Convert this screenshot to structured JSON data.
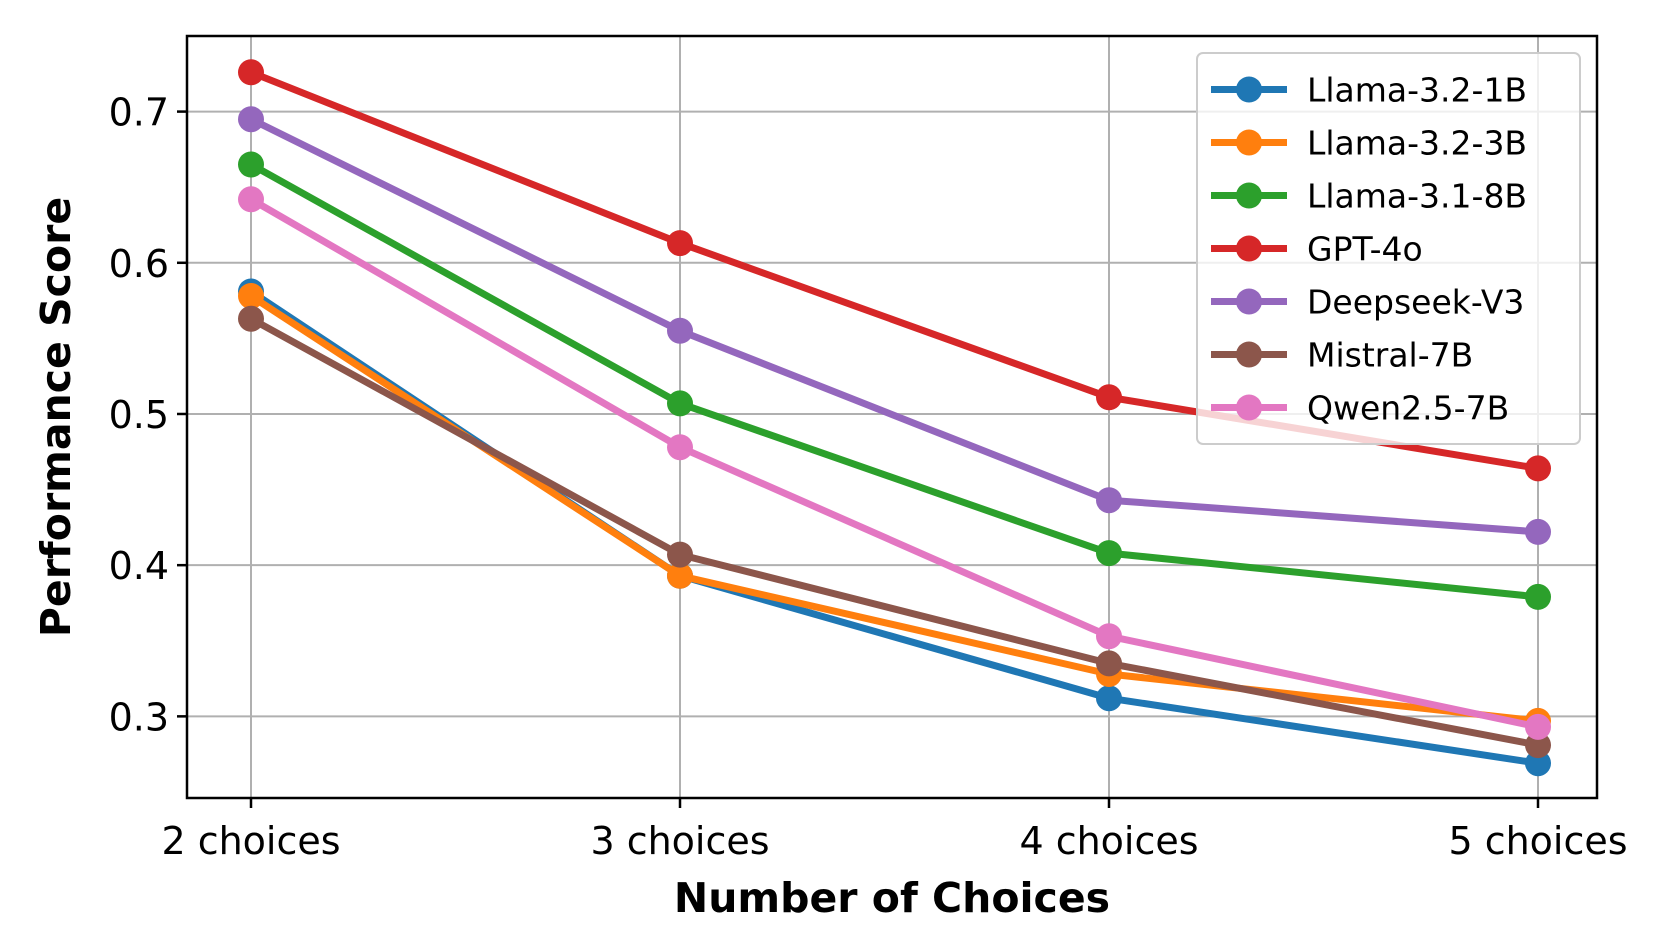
{
  "chart_data": {
    "type": "line",
    "title": "",
    "xlabel": "Number of Choices",
    "ylabel": "Performance Score",
    "categories": [
      "2 choices",
      "3 choices",
      "4 choices",
      "5 choices"
    ],
    "ylim": [
      0.246,
      0.75
    ],
    "yticks": [
      0.3,
      0.4,
      0.5,
      0.6,
      0.7
    ],
    "ytick_labels": [
      "0.3",
      "0.4",
      "0.5",
      "0.6",
      "0.7"
    ],
    "grid": true,
    "legend_position": "top-right",
    "series": [
      {
        "name": "Llama-3.2-1B",
        "color": "#1f77b4",
        "values": [
          0.581,
          0.393,
          0.312,
          0.269
        ]
      },
      {
        "name": "Llama-3.2-3B",
        "color": "#ff7f0e",
        "values": [
          0.578,
          0.393,
          0.328,
          0.297
        ]
      },
      {
        "name": "Llama-3.1-8B",
        "color": "#2ca02c",
        "values": [
          0.665,
          0.507,
          0.408,
          0.379
        ]
      },
      {
        "name": "GPT-4o",
        "color": "#d62728",
        "values": [
          0.726,
          0.613,
          0.511,
          0.464
        ]
      },
      {
        "name": "Deepseek-V3",
        "color": "#9467bd",
        "values": [
          0.695,
          0.555,
          0.443,
          0.422
        ]
      },
      {
        "name": "Mistral-7B",
        "color": "#8c564b",
        "values": [
          0.563,
          0.407,
          0.335,
          0.281
        ]
      },
      {
        "name": "Qwen2.5-7B",
        "color": "#e377c2",
        "values": [
          0.642,
          0.478,
          0.353,
          0.293
        ]
      }
    ]
  }
}
